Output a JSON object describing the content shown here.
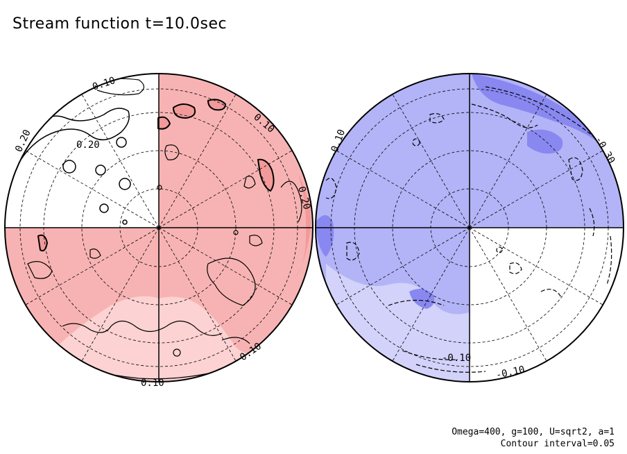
{
  "title": "Stream function t=10.0sec",
  "footer": {
    "line1": "Omega=400, g=100, U=sqrt2, a=1",
    "line2": "Contour interval=0.05"
  },
  "colors": {
    "red_dark": "#f29a9a",
    "red": "#f7b3b3",
    "red_light": "#fcd2d2",
    "blue_dark": "#8888f0",
    "blue": "#b3b3f7",
    "blue_light": "#d2d2fa",
    "line": "#000000"
  },
  "hemispheres": [
    {
      "name": "left-globe",
      "contour_labels": [
        "0.10",
        "0.20",
        "0.20",
        "0.10",
        "0.20",
        "0.10",
        "0.10"
      ]
    },
    {
      "name": "right-globe",
      "contour_labels": [
        "-0.10",
        "-0.30",
        "-0.10",
        "-0.10"
      ]
    }
  ]
}
